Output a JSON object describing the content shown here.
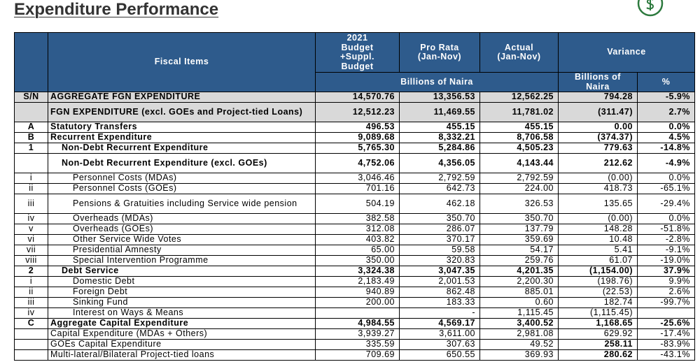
{
  "header": {
    "title": "Expenditure Performance"
  },
  "table": {
    "columns": {
      "sn_header": "S/N",
      "item": "Fiscal Items",
      "budget": "2021\nBudget\n+Suppl.\nBudget",
      "pro_rata": "Pro Rata\n(Jan-Nov)",
      "actual": "Actual\n(Jan-Nov)",
      "variance": "Variance",
      "unit": "Billions of Naira",
      "variance_unit": "Billions of\nNaira",
      "percent": "%"
    },
    "rows": [
      {
        "sn": "S/N",
        "item": "AGGREGATE FGN EXPENDITURE",
        "values": [
          "14,570.76",
          "13,356.53",
          "12,562.25",
          "794.28",
          "-5.9%"
        ],
        "bold": true,
        "shade": true,
        "indent": 0
      },
      {
        "item": "FGN EXPENDITURE (excl. GOEs and Project-tied Loans)",
        "values": [
          "12,512.23",
          "11,469.55",
          "11,781.02",
          "(311.47)",
          "2.7%"
        ],
        "bold": true,
        "shade": true,
        "indent": 0,
        "tall": true
      },
      {
        "sn": "A",
        "item": "Statutory Transfers",
        "values": [
          "496.53",
          "455.15",
          "455.15",
          "0.00",
          "0.0%"
        ],
        "bold": true,
        "indent": 0
      },
      {
        "sn": "B",
        "item": "Recurrent Expenditure",
        "values": [
          "9,089.68",
          "8,332.21",
          "8,706.58",
          "(374.37)",
          "4.5%"
        ],
        "bold": true,
        "indent": 0
      },
      {
        "sn": "1",
        "item": "Non-Debt Recurrent Expenditure",
        "values": [
          "5,765.30",
          "5,284.86",
          "4,505.23",
          "779.63",
          "-14.8%"
        ],
        "bold": true,
        "indent": 1
      },
      {
        "item": "Non-Debt Recurrent Expenditure (excl. GOEs)",
        "values": [
          "4,752.06",
          "4,356.05",
          "4,143.44",
          "212.62",
          "-4.9%"
        ],
        "bold": true,
        "indent": 1,
        "tall": true
      },
      {
        "sn": "i",
        "item": "Personnel Costs (MDAs)",
        "values": [
          "3,046.46",
          "2,792.59",
          "2,792.59",
          "(0.00)",
          "0.0%"
        ],
        "indent": 2
      },
      {
        "sn": "ii",
        "item": "Personnel Costs (GOEs)",
        "values": [
          "701.16",
          "642.73",
          "224.00",
          "418.73",
          "-65.1%"
        ],
        "indent": 2
      },
      {
        "sn": "iii",
        "item": "Pensions & Gratuities including Service wide pension",
        "values": [
          "504.19",
          "462.18",
          "326.53",
          "135.65",
          "-29.4%"
        ],
        "indent": 2,
        "tall": true
      },
      {
        "sn": "iv",
        "item": "Overheads (MDAs)",
        "values": [
          "382.58",
          "350.70",
          "350.70",
          "(0.00)",
          "0.0%"
        ],
        "indent": 2
      },
      {
        "sn": "v",
        "item": "Overheads (GOEs)",
        "values": [
          "312.08",
          "286.07",
          "137.79",
          "148.28",
          "-51.8%"
        ],
        "indent": 2
      },
      {
        "sn": "vi",
        "item": "Other Service Wide Votes",
        "values": [
          "403.82",
          "370.17",
          "359.69",
          "10.48",
          "-2.8%"
        ],
        "indent": 2
      },
      {
        "sn": "vii",
        "item": "Presidential Amnesty",
        "values": [
          "65.00",
          "59.58",
          "54.17",
          "5.41",
          "-9.1%"
        ],
        "indent": 2
      },
      {
        "sn": "viii",
        "item": "Special Intervention Programme",
        "values": [
          "350.00",
          "320.83",
          "259.76",
          "61.07",
          "-19.0%"
        ],
        "indent": 2
      },
      {
        "sn": "2",
        "item": "Debt Service",
        "values": [
          "3,324.38",
          "3,047.35",
          "4,201.35",
          "(1,154.00)",
          "37.9%"
        ],
        "bold": true,
        "indent": 1
      },
      {
        "sn": "i",
        "item": "Domestic Debt",
        "values": [
          "2,183.49",
          "2,001.53",
          "2,200.30",
          "(198.76)",
          "9.9%"
        ],
        "indent": 2
      },
      {
        "sn": "ii",
        "item": "Foreign Debt",
        "values": [
          "940.89",
          "862.48",
          "885.01",
          "(22.53)",
          "2.6%"
        ],
        "indent": 2
      },
      {
        "sn": "iii",
        "item": "Sinking Fund",
        "values": [
          "200.00",
          "183.33",
          "0.60",
          "182.74",
          "-99.7%"
        ],
        "indent": 2
      },
      {
        "sn": "iv",
        "item": "Interest on Ways & Means",
        "values": [
          null,
          "-",
          "1,115.45",
          "(1,115.45)",
          null
        ],
        "indent": 2
      },
      {
        "sn": "C",
        "item": "Aggregate Capital Expenditure",
        "values": [
          "4,984.55",
          "4,569.17",
          "3,400.52",
          "1,168.65",
          "-25.6%"
        ],
        "bold": true,
        "indent": 0
      },
      {
        "item": "Capital Expenditure (MDAs + Others)",
        "values": [
          "3,939.27",
          "3,611.00",
          "2,981.08",
          "629.92",
          "-17.4%"
        ],
        "indent": 0
      },
      {
        "item": "GOEs Capital Expenditure",
        "values": [
          "335.59",
          "307.63",
          "49.52",
          "258.11",
          "-83.9%"
        ],
        "indent": 0,
        "bold_col": 3
      },
      {
        "item": "Multi-lateral/Bilateral Project-tied loans",
        "values": [
          "709.69",
          "650.55",
          "369.93",
          "280.62",
          "-43.1%"
        ],
        "indent": 0,
        "bold_col": 3
      }
    ]
  }
}
